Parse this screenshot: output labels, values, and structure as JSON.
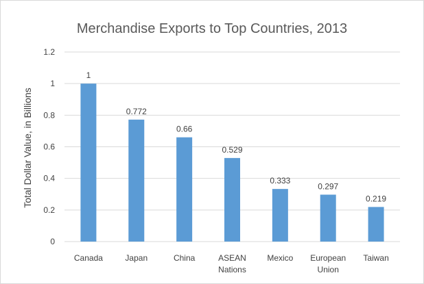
{
  "chart_data": {
    "type": "bar",
    "title": "Merchandise Exports to Top Countries, 2013",
    "xlabel": "",
    "ylabel": "Total Dollar Value, in Billions",
    "categories": [
      [
        "Canada"
      ],
      [
        "Japan"
      ],
      [
        "China"
      ],
      [
        "ASEAN",
        "Nations"
      ],
      [
        "Mexico"
      ],
      [
        "European",
        "Union"
      ],
      [
        "Taiwan"
      ]
    ],
    "values": [
      1,
      0.772,
      0.66,
      0.529,
      0.333,
      0.297,
      0.219
    ],
    "data_labels": [
      "1",
      "0.772",
      "0.66",
      "0.529",
      "0.333",
      "0.297",
      "0.219"
    ],
    "ylim": [
      0,
      1.2
    ],
    "yticks": [
      "0",
      "0.2",
      "0.4",
      "0.6",
      "0.8",
      "1",
      "1.2"
    ],
    "grid": true,
    "legend": "none",
    "colors": {
      "bar": "#5b9bd5",
      "grid": "#d9d9d9",
      "text": "#404040",
      "title": "#595959"
    }
  }
}
